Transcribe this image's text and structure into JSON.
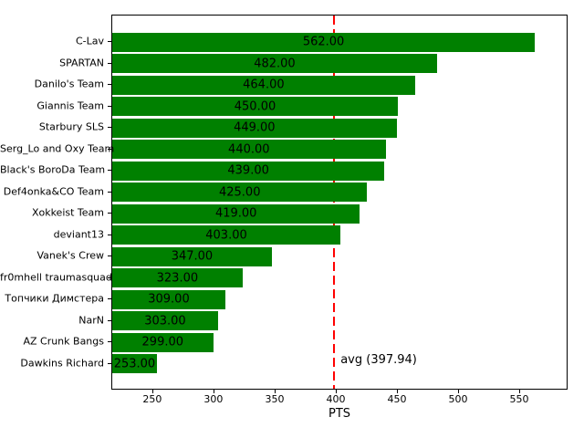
{
  "chart_data": {
    "type": "bar",
    "orientation": "horizontal",
    "title": "",
    "xlabel": "PTS",
    "ylabel": "",
    "categories": [
      "C-Lav",
      "SPARTAN",
      "Danilo's Team",
      "Giannis Team",
      "Starbury SLS",
      "Serg_Lo and Oxy Team",
      "Black's BoroDa Team",
      "Def4onka&CO Team",
      "Xokkeist Team",
      "deviant13",
      "Vanek's Crew",
      "fr0mhell traumasquad",
      "Топчики Димстера",
      "NarN",
      "AZ Crunk Bangs",
      "Dawkins Richard"
    ],
    "values": [
      562,
      482,
      464,
      450,
      449,
      440,
      439,
      425,
      419,
      403,
      347,
      323,
      309,
      303,
      299,
      253
    ],
    "value_label_decimals": 2,
    "xticks": [
      250,
      300,
      350,
      400,
      450,
      500,
      550
    ],
    "xlim": [
      216.5,
      589.5
    ],
    "grid": false,
    "legend": null,
    "bar_color": "#008000",
    "avg_line": {
      "value": 397.94,
      "label": "avg (397.94)",
      "color": "#ff0000",
      "style": "dashed"
    }
  }
}
